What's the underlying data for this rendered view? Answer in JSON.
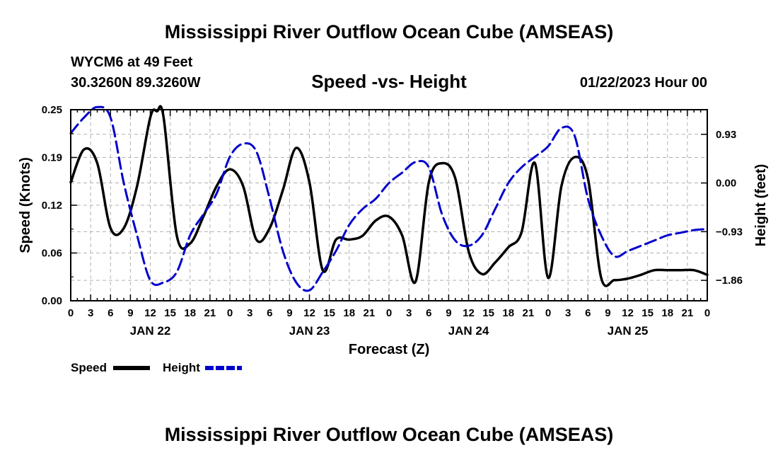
{
  "header": {
    "title": "Mississippi River Outflow Ocean Cube (AMSEAS)",
    "station": "WYCM6 at 49 Feet",
    "coords": "30.3260N  89.3260W",
    "subtitle": "Speed -vs- Height",
    "datetime": "01/22/2023 Hour 00"
  },
  "footer": {
    "title": "Mississippi River Outflow Ocean Cube (AMSEAS)"
  },
  "chart_data": {
    "type": "line",
    "title": "Speed -vs- Height",
    "xlabel": "Forecast (Z)",
    "ylabel": "Speed (Knots)",
    "y2label": "Height (feet)",
    "xlim": [
      0,
      96
    ],
    "ylim": [
      0,
      0.25
    ],
    "y2lim": [
      -2.25,
      1.4
    ],
    "grid": true,
    "x_tick_labels": [
      "0",
      "3",
      "6",
      "9",
      "12",
      "15",
      "18",
      "21",
      "0",
      "3",
      "6",
      "9",
      "12",
      "15",
      "18",
      "21",
      "0",
      "3",
      "6",
      "9",
      "12",
      "15",
      "18",
      "21",
      "0",
      "3",
      "6",
      "9",
      "12",
      "15",
      "18",
      "21",
      "0"
    ],
    "date_labels": [
      {
        "label": "JAN 22",
        "hour": 12
      },
      {
        "label": "JAN 23",
        "hour": 36
      },
      {
        "label": "JAN 24",
        "hour": 60
      },
      {
        "label": "JAN 25",
        "hour": 84
      }
    ],
    "y_ticks": [
      "0.00",
      "0.06",
      "0.12",
      "0.19",
      "0.25"
    ],
    "y_tick_values": [
      0,
      0.0625,
      0.125,
      0.1875,
      0.25
    ],
    "y2_ticks": [
      "0.93",
      "0.00",
      "−0.93",
      "−1.86"
    ],
    "y2_tick_values": [
      0.93,
      0,
      -0.93,
      -1.86
    ],
    "legend": [
      {
        "name": "Speed",
        "color": "#000000",
        "style": "solid"
      },
      {
        "name": "Height",
        "color": "#0000cc",
        "style": "dashed"
      }
    ],
    "series": [
      {
        "name": "Speed",
        "axis": "left",
        "color": "#000000",
        "x": [
          0,
          2,
          4,
          6,
          8,
          10,
          12,
          13,
          14,
          16,
          18,
          20,
          22,
          24,
          26,
          28,
          30,
          32,
          34,
          36,
          38,
          40,
          42,
          44,
          46,
          48,
          50,
          52,
          54,
          56,
          58,
          60,
          62,
          64,
          66,
          68,
          70,
          72,
          74,
          76,
          78,
          80,
          82,
          84,
          86,
          88,
          90,
          92,
          94,
          96
        ],
        "values": [
          0.155,
          0.198,
          0.18,
          0.095,
          0.095,
          0.15,
          0.24,
          0.248,
          0.24,
          0.085,
          0.075,
          0.11,
          0.15,
          0.172,
          0.15,
          0.08,
          0.095,
          0.145,
          0.2,
          0.155,
          0.04,
          0.08,
          0.08,
          0.085,
          0.105,
          0.11,
          0.085,
          0.025,
          0.155,
          0.18,
          0.16,
          0.065,
          0.035,
          0.05,
          0.07,
          0.09,
          0.18,
          0.03,
          0.15,
          0.188,
          0.16,
          0.03,
          0.027,
          0.029,
          0.034,
          0.04,
          0.04,
          0.04,
          0.04,
          0.034
        ],
        "note": "black solid line"
      },
      {
        "name": "Height",
        "axis": "right",
        "color": "#0000cc",
        "x": [
          0,
          2,
          4,
          6,
          8,
          10,
          12,
          14,
          16,
          18,
          20,
          22,
          24,
          26,
          28,
          30,
          32,
          34,
          36,
          38,
          40,
          42,
          44,
          46,
          48,
          50,
          52,
          54,
          56,
          58,
          60,
          62,
          64,
          66,
          68,
          70,
          72,
          74,
          76,
          78,
          80,
          82,
          84,
          86,
          88,
          90,
          92,
          94,
          96
        ],
        "values": [
          0.95,
          1.25,
          1.45,
          1.25,
          0.0,
          -1.0,
          -1.86,
          -1.9,
          -1.7,
          -1.0,
          -0.6,
          -0.2,
          0.5,
          0.75,
          0.6,
          -0.3,
          -1.3,
          -1.9,
          -2.05,
          -1.7,
          -1.3,
          -0.8,
          -0.5,
          -0.3,
          0.0,
          0.2,
          0.4,
          0.3,
          -0.6,
          -1.1,
          -1.2,
          -1.0,
          -0.5,
          0.0,
          0.3,
          0.5,
          0.7,
          1.05,
          0.9,
          -0.3,
          -1.0,
          -1.4,
          -1.3,
          -1.2,
          -1.1,
          -1.0,
          -0.95,
          -0.9,
          -0.88
        ],
        "note": "blue dashed line"
      }
    ]
  }
}
